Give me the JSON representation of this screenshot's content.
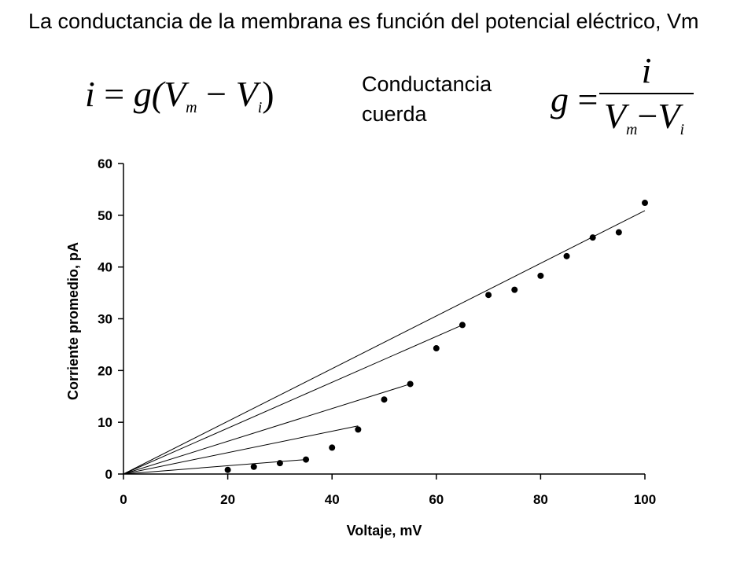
{
  "title": "La conductancia de la membrana es función del potencial eléctrico, Vm",
  "equation_1": {
    "lhs": "i",
    "equals": "=",
    "g": "g(",
    "vm": "V",
    "vm_sub": "m",
    "minus": "−",
    "vi": "V",
    "vi_sub": "i",
    "close": ")"
  },
  "chord_label_line1": "Conductancia",
  "chord_label_line2": "cuerda",
  "equation_2": {
    "lhs": "g",
    "equals": "=",
    "numerator": "i",
    "vm": "V",
    "vm_sub": "m",
    "minus": "−",
    "vi": "V",
    "vi_sub": "i"
  },
  "chart_data": {
    "type": "scatter",
    "xlabel": "Voltaje, mV",
    "ylabel": "Corriente promedio, pA",
    "xlim": [
      0,
      100
    ],
    "ylim": [
      0,
      60
    ],
    "xticks": [
      0,
      20,
      40,
      60,
      80,
      100
    ],
    "yticks": [
      0,
      10,
      20,
      30,
      40,
      50,
      60
    ],
    "grid": false,
    "points": [
      {
        "x": 20,
        "y": 0.8
      },
      {
        "x": 25,
        "y": 1.4
      },
      {
        "x": 30,
        "y": 2.1
      },
      {
        "x": 35,
        "y": 2.8
      },
      {
        "x": 40,
        "y": 5.1
      },
      {
        "x": 45,
        "y": 8.6
      },
      {
        "x": 50,
        "y": 14.4
      },
      {
        "x": 55,
        "y": 17.4
      },
      {
        "x": 60,
        "y": 24.3
      },
      {
        "x": 65,
        "y": 28.8
      },
      {
        "x": 70,
        "y": 34.6
      },
      {
        "x": 75,
        "y": 35.6
      },
      {
        "x": 80,
        "y": 38.3
      },
      {
        "x": 85,
        "y": 42.1
      },
      {
        "x": 90,
        "y": 45.7
      },
      {
        "x": 95,
        "y": 46.7
      },
      {
        "x": 100,
        "y": 52.4
      }
    ],
    "chord_lines": [
      {
        "x0": 0,
        "y0": 0,
        "x1": 35,
        "y1": 2.8
      },
      {
        "x0": 0,
        "y0": 0,
        "x1": 45,
        "y1": 9.3
      },
      {
        "x0": 0,
        "y0": 0,
        "x1": 55,
        "y1": 17.4
      },
      {
        "x0": 0,
        "y0": 0,
        "x1": 65,
        "y1": 28.8
      },
      {
        "x0": 0,
        "y0": 0,
        "x1": 100,
        "y1": 50.9
      }
    ]
  }
}
